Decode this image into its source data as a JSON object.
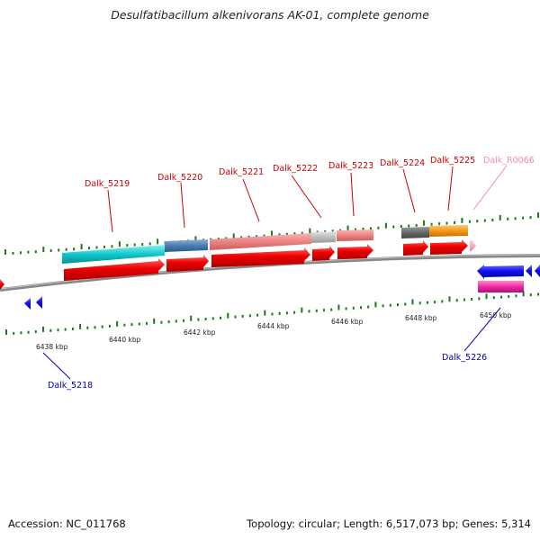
{
  "title": "Desulfatibacillum alkenivorans AK-01, complete genome",
  "footer": {
    "accession": "Accession: NC_011768",
    "summary": "Topology: circular; Length: 6,517,073 bp; Genes: 5,314"
  },
  "colors": {
    "backbone": "#777777",
    "tick": "#1a7a1a",
    "forward_label": "#cc0000",
    "reverse_label": "#0000bb",
    "rna_label": "#f08ab0"
  },
  "scale": {
    "unit": "kbp",
    "labels": [
      "6438 kbp",
      "6440 kbp",
      "6442 kbp",
      "6444 kbp",
      "6446 kbp",
      "6448 kbp",
      "6450 kbp"
    ]
  },
  "genes": [
    {
      "id": "Dalk_5218",
      "strand": "reverse"
    },
    {
      "id": "Dalk_5219",
      "strand": "forward"
    },
    {
      "id": "Dalk_5220",
      "strand": "forward"
    },
    {
      "id": "Dalk_5221",
      "strand": "forward"
    },
    {
      "id": "Dalk_5222",
      "strand": "forward"
    },
    {
      "id": "Dalk_5223",
      "strand": "forward"
    },
    {
      "id": "Dalk_5224",
      "strand": "forward"
    },
    {
      "id": "Dalk_5225",
      "strand": "forward"
    },
    {
      "id": "Dalk_R0066",
      "strand": "forward"
    },
    {
      "id": "Dalk_5226",
      "strand": "reverse"
    }
  ]
}
